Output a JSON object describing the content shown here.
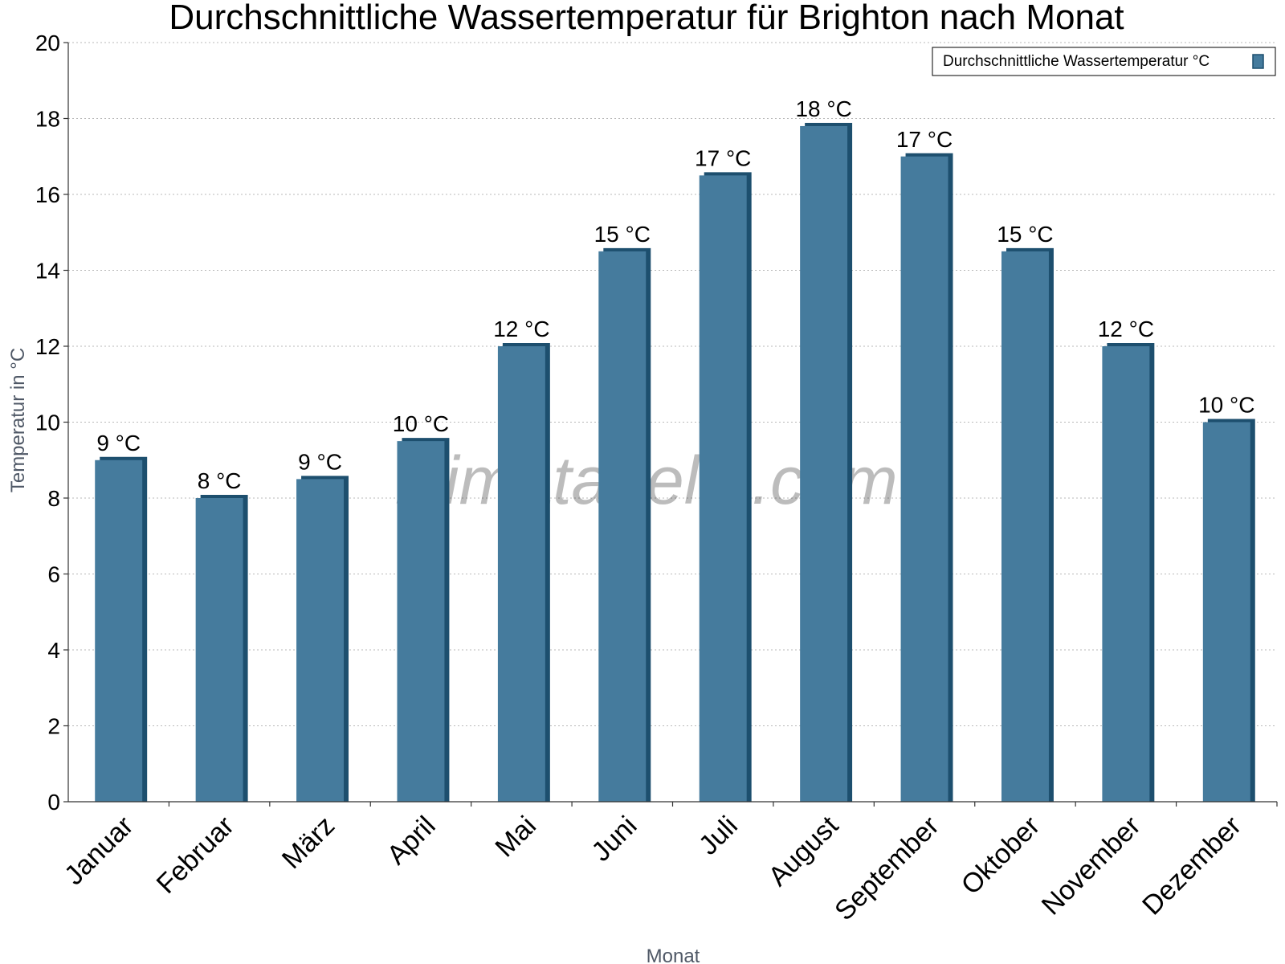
{
  "chart_data": {
    "type": "bar",
    "title": "Durchschnittliche Wassertemperatur für Brighton nach Monat",
    "xlabel": "Monat",
    "ylabel": "Temperatur in °C",
    "ylim": [
      0,
      20
    ],
    "yticks": [
      "0",
      "2",
      "4",
      "6",
      "8",
      "10",
      "12",
      "14",
      "16",
      "18",
      "20"
    ],
    "grid": true,
    "legend_position": "top-right",
    "categories": [
      "Januar",
      "Februar",
      "März",
      "April",
      "Mai",
      "Juni",
      "Juli",
      "August",
      "September",
      "Oktober",
      "November",
      "Dezember"
    ],
    "series": [
      {
        "name": "Durchschnittliche Wassertemperatur °C",
        "color": "#457b9d",
        "values": [
          9,
          8,
          8.5,
          9.5,
          12,
          14.5,
          16.5,
          17.8,
          17,
          14.5,
          12,
          10
        ],
        "labels": [
          "9 °C",
          "8 °C",
          "9 °C",
          "10 °C",
          "12 °C",
          "15 °C",
          "17 °C",
          "18 °C",
          "17 °C",
          "15 °C",
          "12 °C",
          "10 °C"
        ]
      }
    ],
    "watermark": "klimatabelle.com"
  },
  "colors": {
    "bar": "#457b9d",
    "bar_shade": "#1d4f6e"
  }
}
